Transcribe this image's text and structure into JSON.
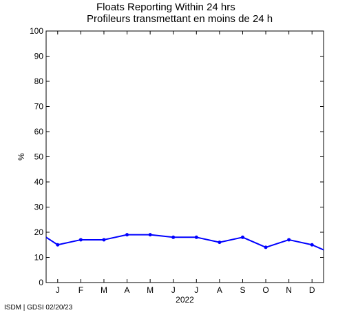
{
  "chart_data": {
    "type": "line",
    "title": "Floats Reporting Within 24 hrs",
    "subtitle": "Profileurs transmettant en moins de 24 h",
    "xlabel": "2022",
    "ylabel": "%",
    "ylim": [
      0,
      100
    ],
    "yticks": [
      0,
      10,
      20,
      30,
      40,
      50,
      60,
      70,
      80,
      90,
      100
    ],
    "x_tick_labels": [
      "J",
      "F",
      "M",
      "A",
      "M",
      "J",
      "J",
      "A",
      "S",
      "O",
      "N",
      "D"
    ],
    "x_tick_positions": [
      1,
      2,
      3,
      4,
      5,
      6,
      7,
      8,
      9,
      10,
      11,
      12
    ],
    "xlim": [
      0.5,
      12.5
    ],
    "grid": false,
    "series": [
      {
        "x": [
          0.5,
          1,
          2,
          3,
          4,
          5,
          6,
          7,
          8,
          9,
          10,
          11,
          12,
          12.5
        ],
        "values": [
          18,
          15,
          17,
          17,
          19,
          19,
          18,
          18,
          16,
          18,
          14,
          17,
          15,
          13
        ],
        "color": "#0000ff"
      }
    ]
  },
  "footer": "ISDM | GDSI 02/20/23"
}
